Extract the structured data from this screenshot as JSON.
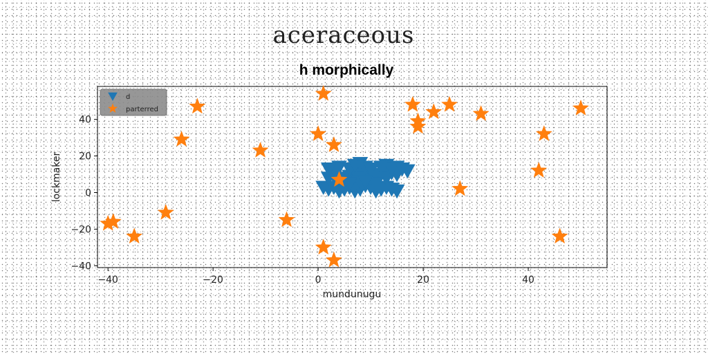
{
  "figure": {
    "suptitle": "aceraceous"
  },
  "chart_data": {
    "type": "scatter",
    "title": "h morphically",
    "xlabel": "mundunugu",
    "ylabel": "lockmaker",
    "xlim": [
      -42,
      55
    ],
    "ylim": [
      -41,
      58
    ],
    "xticks": [
      -40,
      -20,
      0,
      20,
      40
    ],
    "yticks": [
      -40,
      -20,
      0,
      20,
      40
    ],
    "xtick_labels": [
      "−40",
      "−20",
      "0",
      "20",
      "40"
    ],
    "ytick_labels": [
      "−40",
      "−20",
      "0",
      "20",
      "40"
    ],
    "grid": false,
    "legend_position": "top-left",
    "series": [
      {
        "name": "d",
        "marker": "triangle-down",
        "color": "#1f77b4",
        "points": [
          [
            1,
            3
          ],
          [
            2,
            2
          ],
          [
            3,
            3
          ],
          [
            4,
            1
          ],
          [
            5,
            2
          ],
          [
            6,
            3
          ],
          [
            7,
            1
          ],
          [
            8,
            2
          ],
          [
            9,
            4
          ],
          [
            10,
            3
          ],
          [
            11,
            1
          ],
          [
            12,
            2
          ],
          [
            13,
            3
          ],
          [
            14,
            2
          ],
          [
            15,
            1
          ],
          [
            2,
            8
          ],
          [
            3,
            9
          ],
          [
            4,
            8
          ],
          [
            5,
            7
          ],
          [
            6,
            9
          ],
          [
            7,
            11
          ],
          [
            8,
            10
          ],
          [
            9,
            8
          ],
          [
            10,
            12
          ],
          [
            11,
            9
          ],
          [
            12,
            10
          ],
          [
            13,
            8
          ],
          [
            14,
            11
          ],
          [
            15,
            10
          ],
          [
            3,
            13
          ],
          [
            4,
            14
          ],
          [
            6,
            13
          ],
          [
            7,
            15
          ],
          [
            8,
            16
          ],
          [
            9,
            14
          ],
          [
            10,
            13
          ],
          [
            13,
            15
          ],
          [
            14,
            13
          ],
          [
            15,
            14
          ],
          [
            16,
            13
          ],
          [
            5,
            6
          ],
          [
            8,
            6
          ],
          [
            11,
            5
          ],
          [
            2,
            13
          ],
          [
            12,
            14
          ],
          [
            17,
            12
          ],
          [
            6,
            5
          ],
          [
            9,
            6
          ]
        ]
      },
      {
        "name": "parterred",
        "marker": "star",
        "color": "#ff7f0e",
        "points": [
          [
            1,
            54
          ],
          [
            18,
            48
          ],
          [
            22,
            44
          ],
          [
            25,
            48
          ],
          [
            31,
            43
          ],
          [
            50,
            46
          ],
          [
            -23,
            47
          ],
          [
            19,
            39
          ],
          [
            19,
            36
          ],
          [
            0,
            32
          ],
          [
            43,
            32
          ],
          [
            -26,
            29
          ],
          [
            3,
            26
          ],
          [
            -11,
            23
          ],
          [
            42,
            12
          ],
          [
            4,
            7
          ],
          [
            27,
            2
          ],
          [
            -29,
            -11
          ],
          [
            -6,
            -15
          ],
          [
            -39,
            -16
          ],
          [
            -40,
            -17
          ],
          [
            -35,
            -24
          ],
          [
            46,
            -24
          ],
          [
            1,
            -30
          ],
          [
            3,
            -37
          ]
        ]
      }
    ]
  }
}
